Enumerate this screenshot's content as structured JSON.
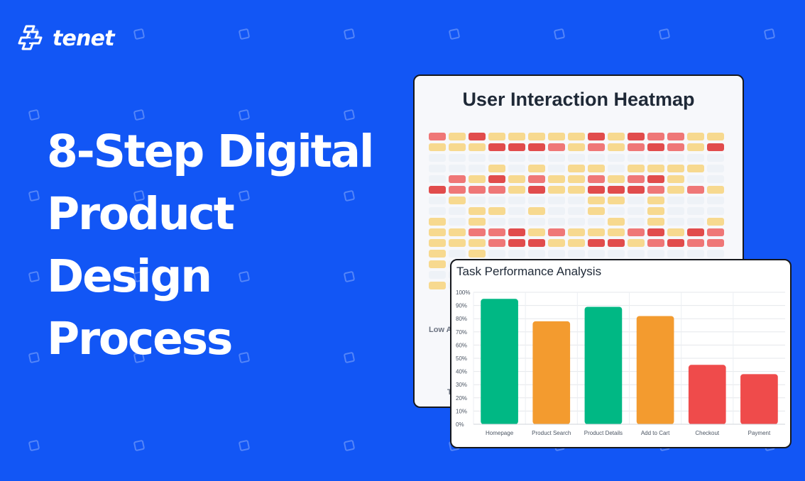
{
  "brand": {
    "name": "tenet",
    "logo_icon": "tenet-logo-icon"
  },
  "headline": {
    "lines": [
      "8-Step Digital",
      "Product",
      "Design",
      "Process"
    ]
  },
  "heatmap": {
    "title": "User Interaction Heatmap",
    "legend_low": "Low A",
    "partial_label": "T",
    "colors": {
      "empty": "#eef2f7",
      "low": "#f7d98f",
      "medium": "#ef7777",
      "high": "#e14c4c"
    },
    "rows": [
      [
        "medium",
        "low",
        "high",
        "low",
        "low",
        "low",
        "low",
        "low",
        "high",
        "low",
        "high",
        "medium",
        "medium",
        "low",
        "low"
      ],
      [
        "low",
        "low",
        "low",
        "high",
        "high",
        "high",
        "medium",
        "low",
        "medium",
        "low",
        "medium",
        "high",
        "medium",
        "low",
        "high"
      ],
      [
        "empty",
        "empty",
        "empty",
        "empty",
        "empty",
        "empty",
        "empty",
        "empty",
        "empty",
        "empty",
        "empty",
        "empty",
        "empty",
        "empty",
        "empty"
      ],
      [
        "empty",
        "empty",
        "empty",
        "low",
        "empty",
        "low",
        "empty",
        "low",
        "low",
        "empty",
        "low",
        "low",
        "low",
        "low",
        "empty"
      ],
      [
        "empty",
        "medium",
        "low",
        "high",
        "low",
        "medium",
        "low",
        "low",
        "medium",
        "low",
        "medium",
        "high",
        "low",
        "empty",
        "empty"
      ],
      [
        "high",
        "medium",
        "medium",
        "medium",
        "low",
        "high",
        "low",
        "low",
        "high",
        "high",
        "high",
        "medium",
        "low",
        "medium",
        "low"
      ],
      [
        "empty",
        "low",
        "empty",
        "empty",
        "empty",
        "empty",
        "empty",
        "empty",
        "low",
        "low",
        "empty",
        "low",
        "empty",
        "empty",
        "empty"
      ],
      [
        "empty",
        "empty",
        "low",
        "low",
        "empty",
        "low",
        "empty",
        "empty",
        "low",
        "empty",
        "empty",
        "low",
        "empty",
        "empty",
        "empty"
      ],
      [
        "low",
        "empty",
        "low",
        "empty",
        "empty",
        "empty",
        "empty",
        "empty",
        "empty",
        "low",
        "empty",
        "low",
        "empty",
        "empty",
        "low"
      ],
      [
        "low",
        "low",
        "medium",
        "medium",
        "high",
        "low",
        "medium",
        "low",
        "low",
        "low",
        "medium",
        "high",
        "low",
        "high",
        "medium"
      ],
      [
        "low",
        "low",
        "low",
        "medium",
        "high",
        "high",
        "low",
        "low",
        "high",
        "high",
        "low",
        "medium",
        "high",
        "medium",
        "medium"
      ],
      [
        "low",
        "empty",
        "low",
        "empty",
        "empty",
        "empty",
        "empty",
        "empty",
        "empty",
        "empty",
        "empty",
        "empty",
        "empty",
        "empty",
        "empty"
      ],
      [
        "low",
        "empty",
        "low",
        "empty",
        "empty",
        "empty",
        "empty",
        "empty",
        "empty",
        "empty",
        "empty",
        "empty",
        "empty",
        "empty",
        "empty"
      ],
      [
        "empty",
        "empty",
        "empty",
        "empty",
        "empty",
        "empty",
        "empty",
        "empty",
        "empty",
        "empty",
        "empty",
        "empty",
        "empty",
        "empty",
        "empty"
      ],
      [
        "low",
        "empty",
        "empty",
        "empty",
        "empty",
        "empty",
        "empty",
        "empty",
        "empty",
        "empty",
        "empty",
        "empty",
        "empty",
        "empty",
        "empty"
      ]
    ]
  },
  "performance": {
    "title": "Task Performance Analysis"
  },
  "chart_data": {
    "type": "bar",
    "title": "Task Performance Analysis",
    "categories": [
      "Homepage",
      "Product Search",
      "Product Details",
      "Add to Cart",
      "Checkout",
      "Payment"
    ],
    "values": [
      95,
      78,
      89,
      82,
      45,
      38
    ],
    "ylim": [
      0,
      100
    ],
    "ticks": [
      "0%",
      "10%",
      "20%",
      "30%",
      "40%",
      "50%",
      "60%",
      "70%",
      "80%",
      "90%",
      "100%"
    ],
    "colors": [
      "#00b884",
      "#f39b2f",
      "#00b884",
      "#f39b2f",
      "#ef4b4b",
      "#ef4b4b"
    ],
    "grid": true,
    "legend": "none"
  },
  "colors": {
    "background": "#1256f5",
    "text_light": "#ffffff",
    "card_border": "#16181d"
  }
}
